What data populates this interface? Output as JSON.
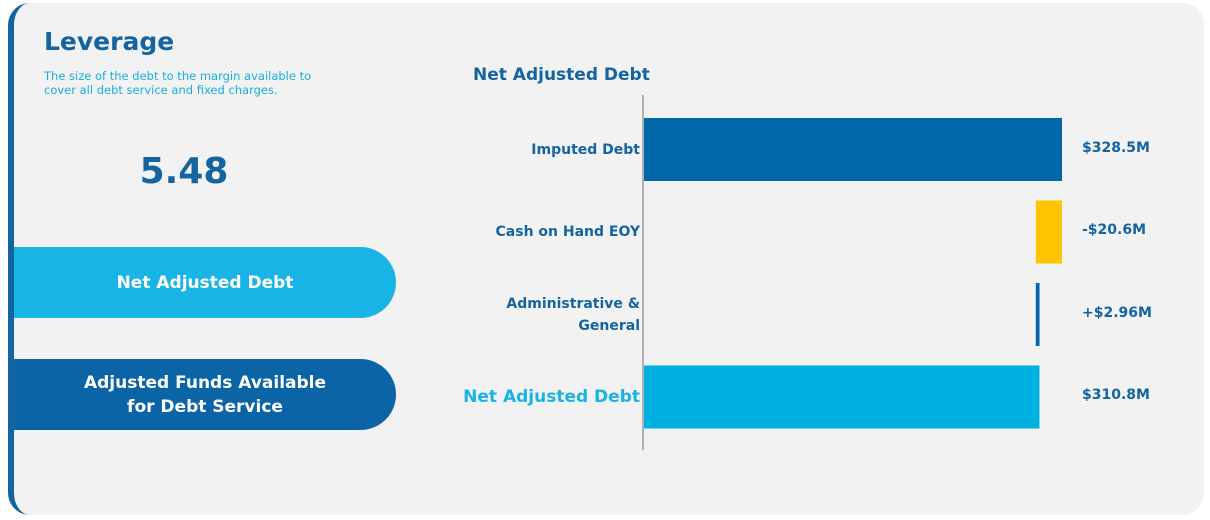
{
  "header": {
    "title": "Leverage",
    "description": "The size of the debt to the margin available to cover all debt service and fixed charges."
  },
  "metric": {
    "value": "5.48"
  },
  "buttons": [
    "Net Adjusted Debt",
    "Adjusted Funds Available for Debt Service"
  ],
  "chart_data": {
    "type": "waterfall",
    "title": "Net Adjusted Debt",
    "categories": [
      "Imputed Debt",
      "Cash on Hand EOY",
      "Administrative & General",
      "Net Adjusted Debt"
    ],
    "values": [
      328.5,
      -20.6,
      2.96,
      310.8
    ],
    "value_labels": [
      "$328.5M",
      "-$20.6M",
      "+$2.96M",
      "$310.8M"
    ],
    "measure": [
      "absolute",
      "relative",
      "relative",
      "total"
    ],
    "colors": [
      "#0068a8",
      "#ffc600",
      "#0068a8",
      "#00b0e0"
    ]
  }
}
